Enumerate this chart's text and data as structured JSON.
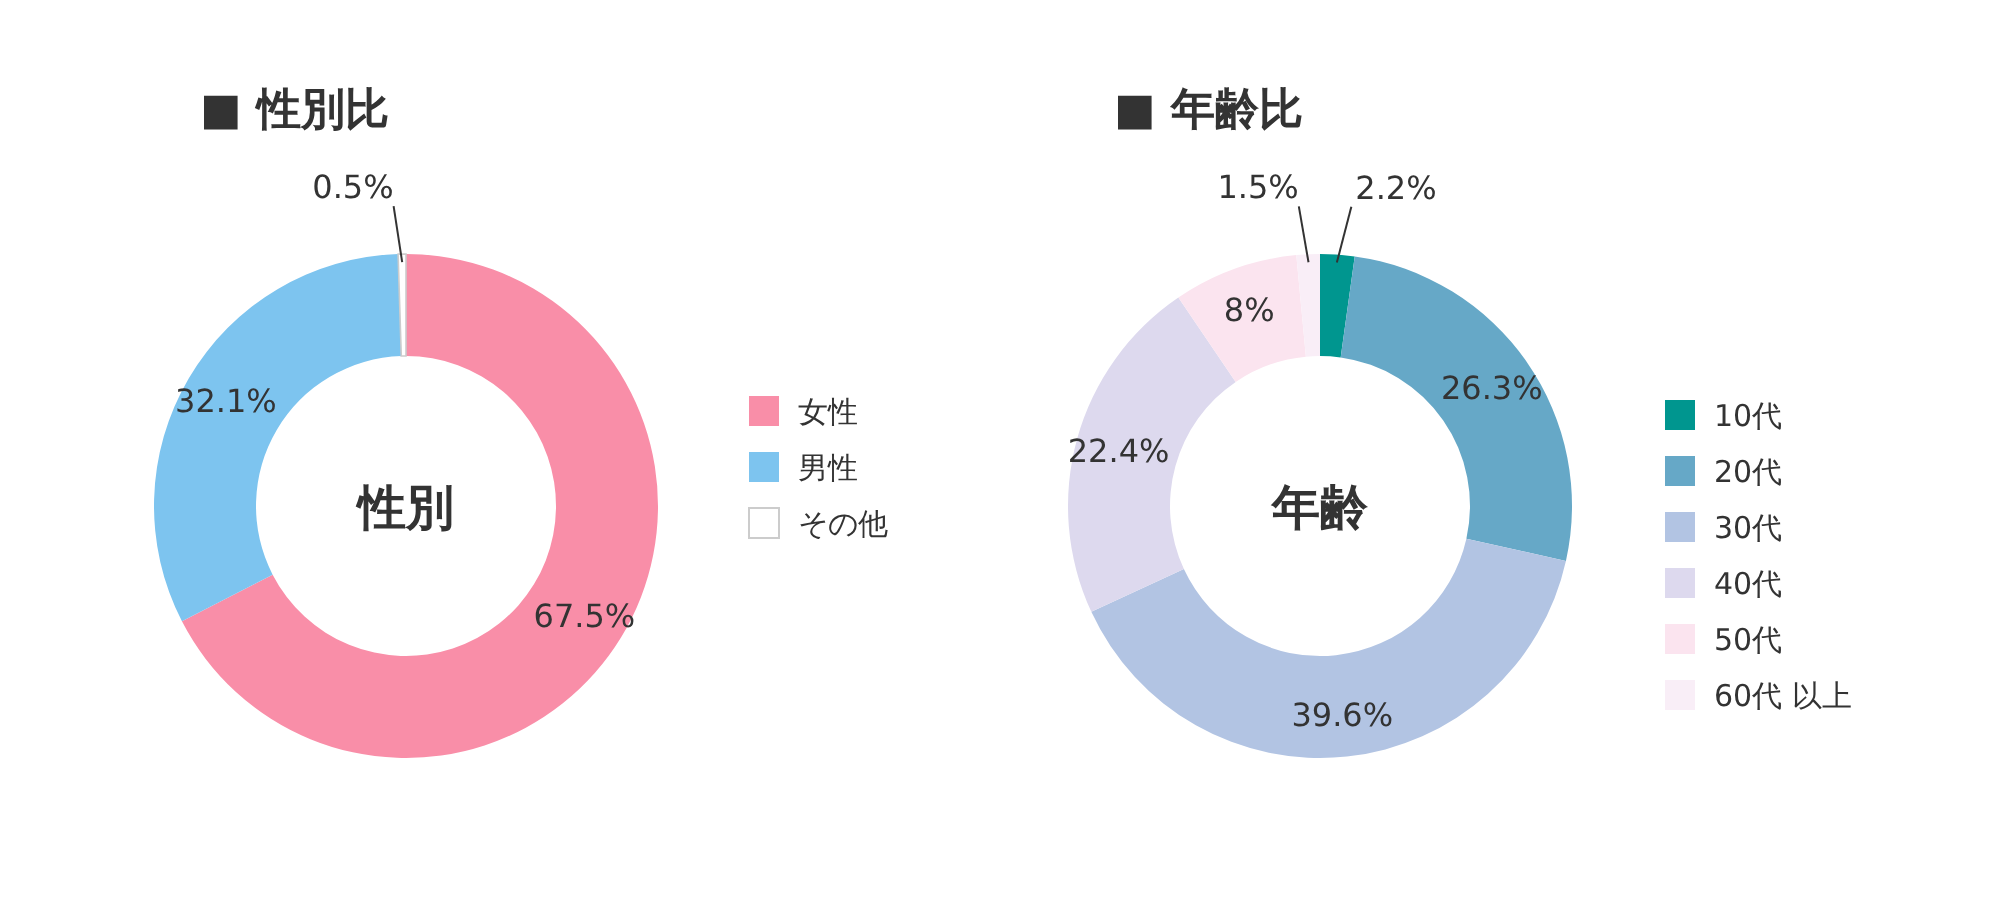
{
  "chart_data": [
    {
      "type": "donut",
      "title": "■ 性別比",
      "categories": [
        "女性",
        "男性",
        "その他"
      ],
      "values": [
        67.5,
        32.1,
        0.5
      ],
      "colors": [
        "#f98ea8",
        "#7dc4ef",
        "#ffffff"
      ],
      "value_labels": [
        "67.5%",
        "32.1%",
        "0.5%"
      ],
      "annotations": [
        "性別"
      ],
      "legend": "right"
    },
    {
      "type": "donut",
      "title": "■ 年齢比",
      "categories": [
        "10代",
        "20代",
        "30代",
        "40代",
        "50代",
        "60代 以上"
      ],
      "values": [
        2.2,
        26.3,
        39.6,
        22.4,
        8,
        1.5
      ],
      "colors": [
        "#00968f",
        "#66a8c7",
        "#b2c4e3",
        "#ddd9ee",
        "#fbe4ef",
        "#f9eef7"
      ],
      "value_labels": [
        "2.2%",
        "26.3%",
        "39.6%",
        "22.4%",
        "8%",
        "1.5%"
      ],
      "annotations": [
        "年齢"
      ],
      "legend": "right"
    }
  ]
}
